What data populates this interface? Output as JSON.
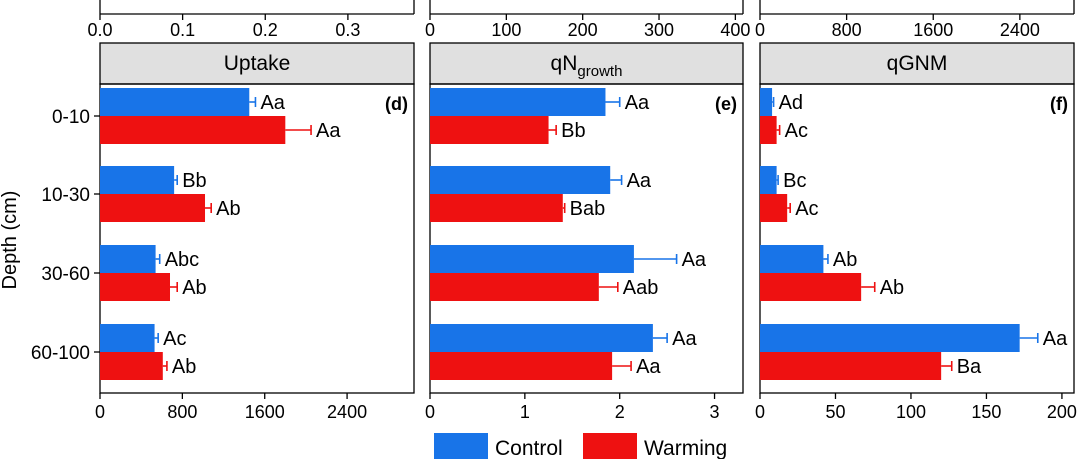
{
  "chart_data": {
    "type": "bar",
    "orientation": "horizontal",
    "ylabel": "Depth (cm)",
    "categories": [
      "0-10",
      "10-30",
      "30-60",
      "60-100"
    ],
    "colors": {
      "control": "#1874e8",
      "warming": "#ee1111"
    },
    "legend": {
      "position": "bottom",
      "items": [
        {
          "name": "Control",
          "color": "#1874e8"
        },
        {
          "name": "Warming",
          "color": "#ee1111"
        }
      ]
    },
    "top_axes": [
      {
        "ticks": [
          "0.0",
          "0.1",
          "0.2",
          "0.3"
        ],
        "tick_values": [
          0,
          0.1,
          0.2,
          0.3
        ],
        "xlim": [
          0,
          0.38
        ]
      },
      {
        "ticks": [
          "0",
          "100",
          "200",
          "300",
          "400"
        ],
        "tick_values": [
          0,
          100,
          200,
          300,
          400
        ],
        "xlim": [
          0,
          410
        ]
      },
      {
        "ticks": [
          "0",
          "800",
          "1600",
          "2400"
        ],
        "tick_values": [
          0,
          800,
          1600,
          2400
        ],
        "xlim": [
          0,
          2900
        ]
      }
    ],
    "panels": [
      {
        "title": "Uptake",
        "title_sub": "",
        "tag": "(d)",
        "xlim": [
          0,
          3050
        ],
        "xticks": [
          0,
          800,
          1600,
          2400
        ],
        "xtick_labels": [
          "0",
          "800",
          "1600",
          "2400"
        ],
        "series": [
          {
            "name": "Control",
            "values": [
              1450,
              720,
              540,
              530
            ],
            "errors": [
              60,
              30,
              40,
              35
            ],
            "labels": [
              "Aa",
              "Bb",
              "Abc",
              "Ac"
            ]
          },
          {
            "name": "Warming",
            "values": [
              1800,
              1020,
              680,
              610
            ],
            "errors": [
              250,
              60,
              70,
              40
            ],
            "labels": [
              "Aa",
              "Ab",
              "Ab",
              "Ab"
            ]
          }
        ]
      },
      {
        "title": "qN",
        "title_sub": "growth",
        "tag": "(e)",
        "xlim": [
          0,
          3.3
        ],
        "xticks": [
          0,
          1,
          2,
          3
        ],
        "xtick_labels": [
          "0",
          "1",
          "2",
          "3"
        ],
        "series": [
          {
            "name": "Control",
            "values": [
              1.85,
              1.9,
              2.15,
              2.35
            ],
            "errors": [
              0.15,
              0.12,
              0.45,
              0.15
            ],
            "labels": [
              "Aa",
              "Aa",
              "Aa",
              "Aa"
            ]
          },
          {
            "name": "Warming",
            "values": [
              1.25,
              1.4,
              1.78,
              1.92
            ],
            "errors": [
              0.08,
              0.02,
              0.2,
              0.2
            ],
            "labels": [
              "Bb",
              "Bab",
              "Aab",
              "Aa"
            ]
          }
        ]
      },
      {
        "title": "qGNM",
        "title_sub": "",
        "tag": "(f)",
        "xlim": [
          0,
          208
        ],
        "xticks": [
          0,
          50,
          100,
          150,
          200
        ],
        "xtick_labels": [
          "0",
          "50",
          "100",
          "150",
          "200"
        ],
        "series": [
          {
            "name": "Control",
            "values": [
              8,
              11,
              42,
              172
            ],
            "errors": [
              1,
              1,
              3,
              12
            ],
            "labels": [
              "Ad",
              "Bc",
              "Ab",
              "Aa"
            ]
          },
          {
            "name": "Warming",
            "values": [
              11,
              18,
              67,
              120
            ],
            "errors": [
              2,
              2,
              9,
              7
            ],
            "labels": [
              "Ac",
              "Ac",
              "Ab",
              "Ba"
            ]
          }
        ]
      }
    ]
  }
}
